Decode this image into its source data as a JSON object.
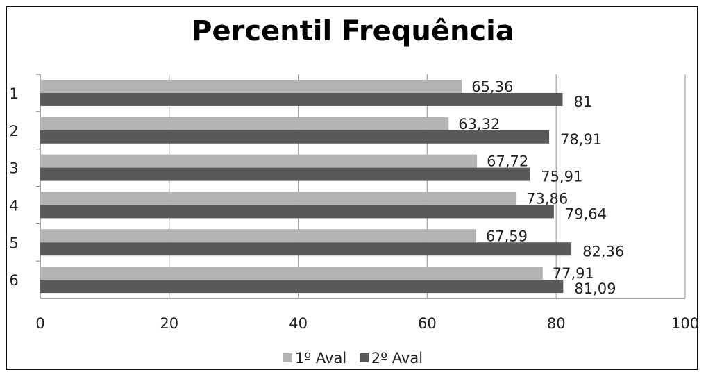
{
  "chart_data": {
    "type": "bar",
    "orientation": "horizontal",
    "title": "Percentil Frequência",
    "categories": [
      "1",
      "2",
      "3",
      "4",
      "5",
      "6"
    ],
    "series": [
      {
        "name": "1º Aval",
        "color": "#b3b3b3",
        "values": [
          65.36,
          63.32,
          67.72,
          73.86,
          67.59,
          77.91
        ],
        "labels": [
          "65,36",
          "63,32",
          "67,72",
          "73,86",
          "67,59",
          "77,91"
        ]
      },
      {
        "name": "2º Aval",
        "color": "#595959",
        "values": [
          81,
          78.91,
          75.91,
          79.64,
          82.36,
          81.09
        ],
        "labels": [
          "81",
          "78,91",
          "75,91",
          "79,64",
          "82,36",
          "81,09"
        ]
      }
    ],
    "xlim": [
      0,
      100
    ],
    "xticks": [
      "0",
      "20",
      "40",
      "60",
      "80",
      "100"
    ],
    "grid": "vertical",
    "legend": "bottom"
  }
}
